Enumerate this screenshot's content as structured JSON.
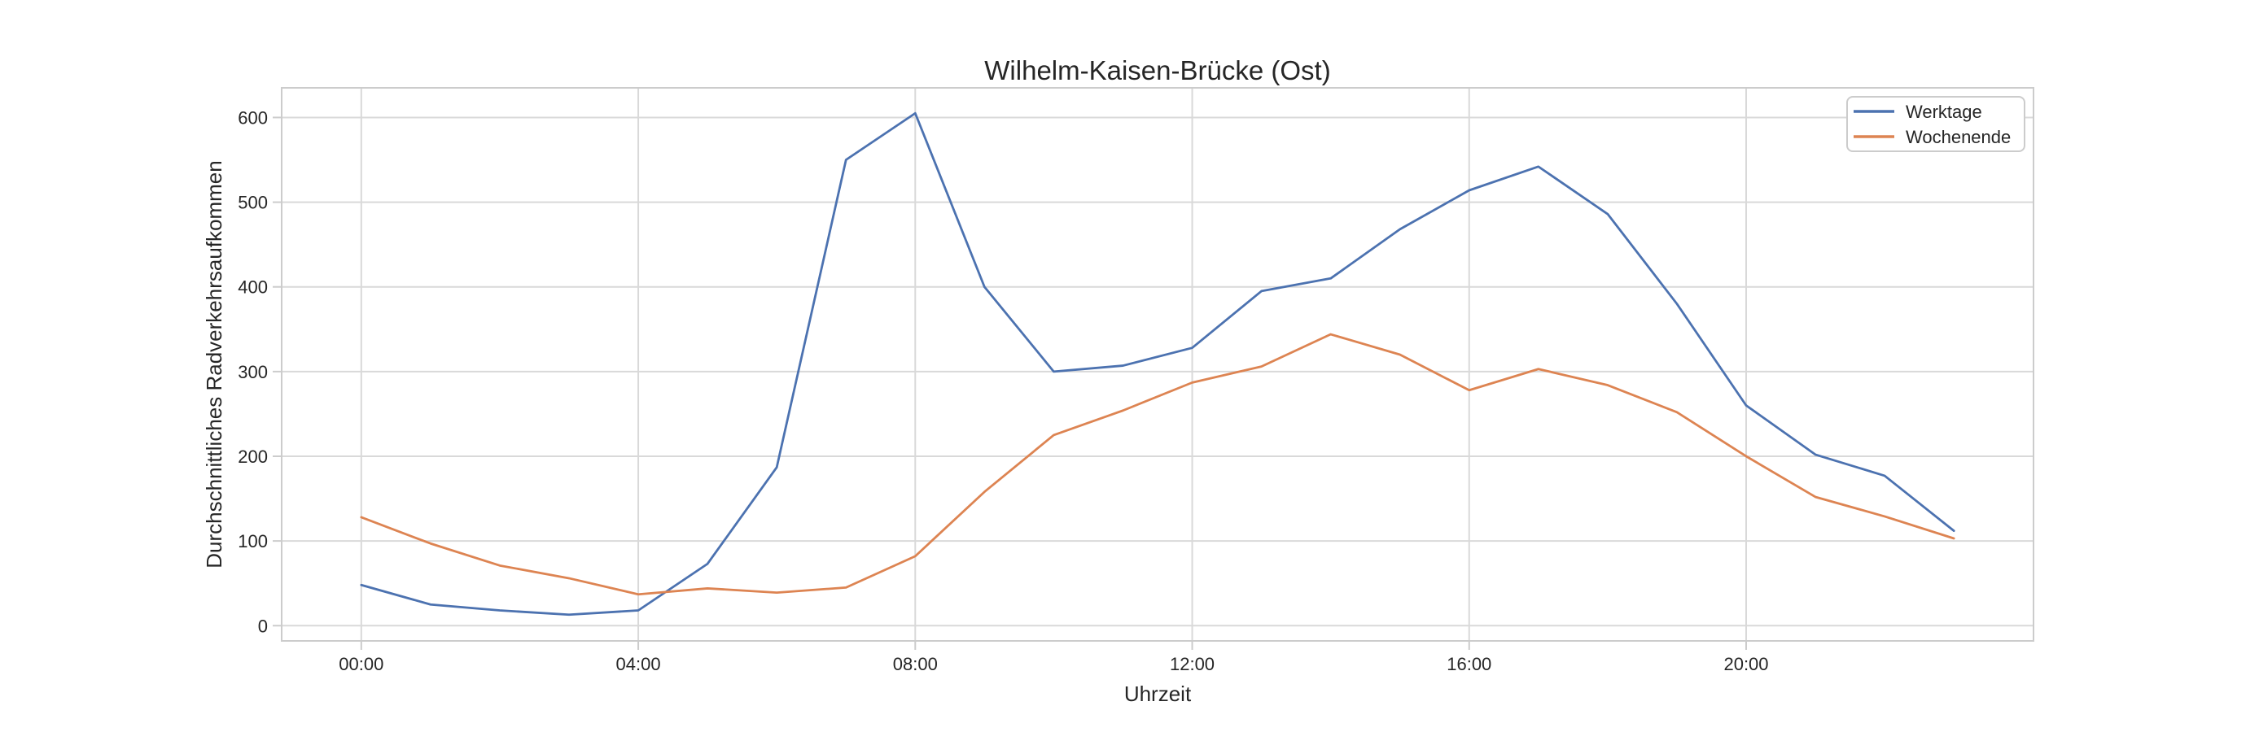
{
  "chart_data": {
    "type": "line",
    "title": "Wilhelm-Kaisen-Brücke (Ost)",
    "xlabel": "Uhrzeit",
    "ylabel": "Durchschnittliches Radverkehrsaufkommen",
    "grid": true,
    "legend_position": "upper right",
    "xlim": [
      -1.15,
      24.15
    ],
    "ylim": [
      -18,
      635
    ],
    "x_ticks_hours": [
      0,
      4,
      8,
      12,
      16,
      20
    ],
    "x_tick_labels": [
      "00:00",
      "04:00",
      "08:00",
      "12:00",
      "16:00",
      "20:00"
    ],
    "y_ticks": [
      0,
      100,
      200,
      300,
      400,
      500,
      600
    ],
    "hours": [
      0,
      1,
      2,
      3,
      4,
      5,
      6,
      7,
      8,
      9,
      10,
      11,
      12,
      13,
      14,
      15,
      16,
      17,
      18,
      19,
      20,
      21,
      22,
      23
    ],
    "series": [
      {
        "name": "Werktage",
        "color": "#4C72B0",
        "values": [
          48,
          25,
          18,
          13,
          18,
          73,
          187,
          550,
          605,
          400,
          300,
          307,
          328,
          395,
          410,
          468,
          514,
          542,
          486,
          380,
          260,
          202,
          177,
          112
        ]
      },
      {
        "name": "Wochenende",
        "color": "#DD8452",
        "values": [
          128,
          97,
          71,
          56,
          37,
          44,
          39,
          45,
          82,
          158,
          225,
          254,
          287,
          306,
          344,
          320,
          278,
          303,
          284,
          252,
          200,
          152,
          129,
          103
        ]
      }
    ],
    "palette": {
      "background": "#ffffff",
      "grid": "#d9d9d9",
      "spine": "#cccccc",
      "text": "#262626"
    }
  }
}
